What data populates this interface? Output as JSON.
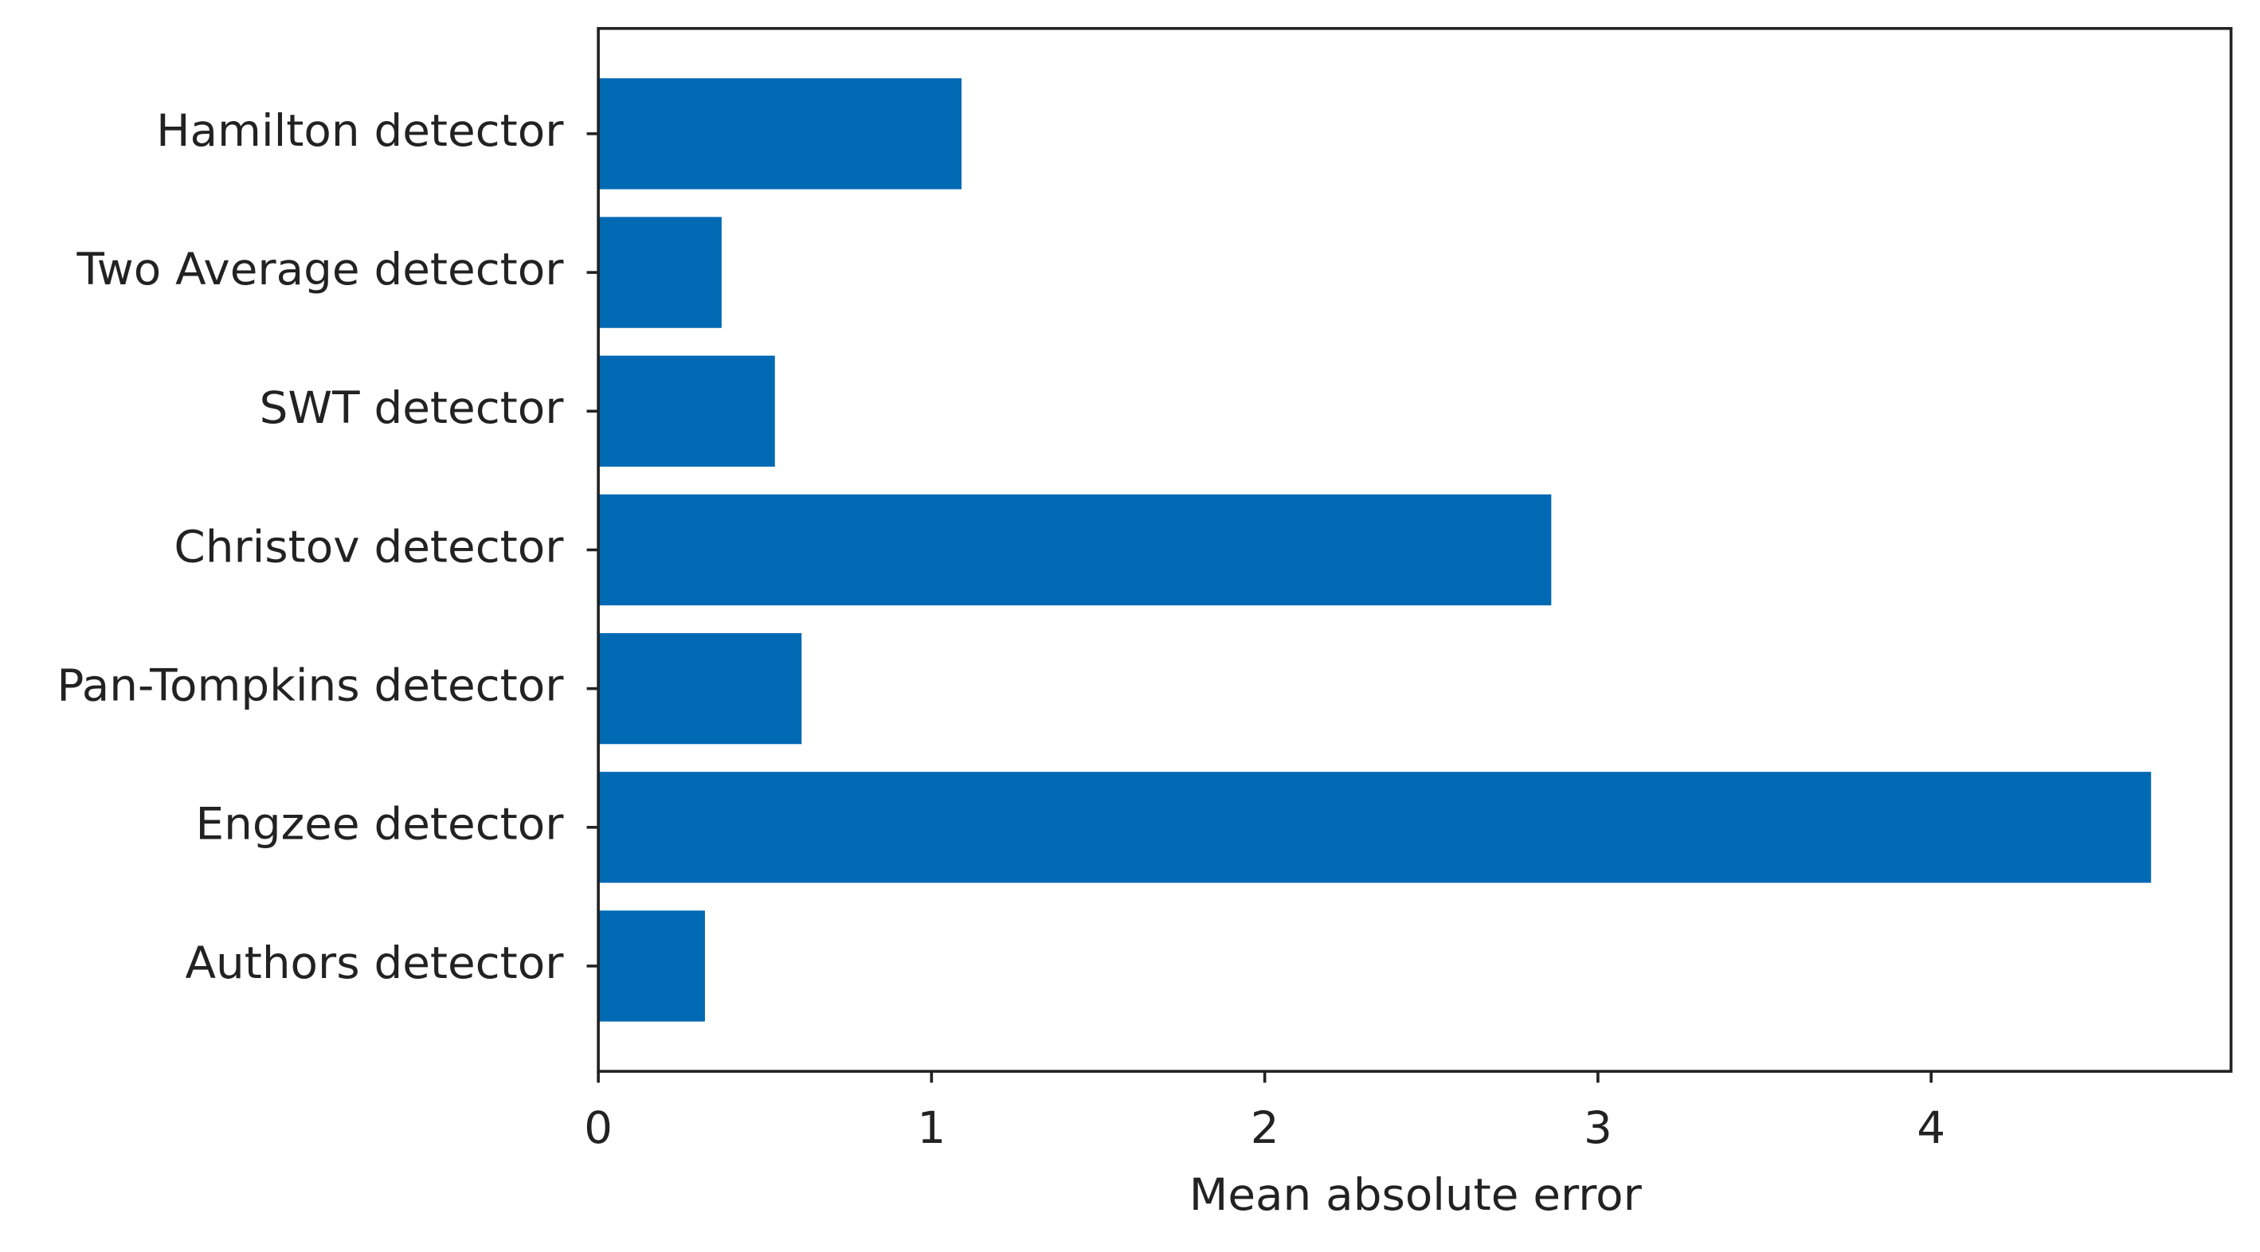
{
  "chart_data": {
    "type": "barh",
    "xlabel": "Mean absolute error",
    "categories": [
      "Hamilton detector",
      "Two Average detector",
      "SWT detector",
      "Christov detector",
      "Pan-Tompkins detector",
      "Engzee detector",
      "Authors detector"
    ],
    "values": [
      1.09,
      0.37,
      0.53,
      2.86,
      0.61,
      4.66,
      0.32
    ],
    "color": "#0069b4",
    "xlim": [
      0,
      4.9
    ],
    "xticks": [
      0,
      1,
      2,
      3,
      4
    ]
  }
}
